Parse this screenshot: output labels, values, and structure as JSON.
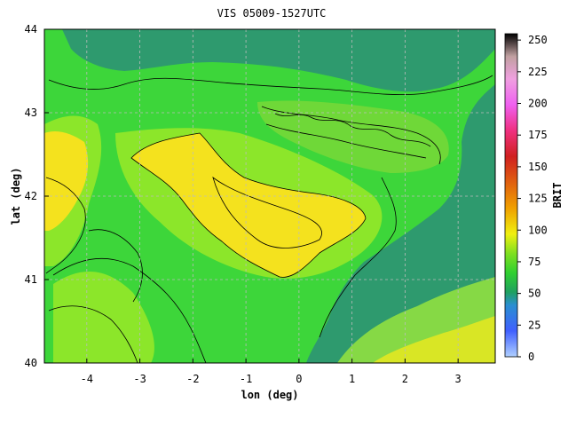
{
  "title": "VIS 05009-1527UTC",
  "colors": {
    "sea": "#2e9a6e",
    "land_low": "#3dd63a",
    "land_mid": "#8ce62a",
    "plateau": "#f4e21e",
    "grid": "#bcbcbc",
    "frame": "#000000"
  },
  "chart_data": {
    "type": "heatmap",
    "title": "VIS 05009-1527UTC",
    "xlabel": "lon (deg)",
    "ylabel": "lat (deg)",
    "xlim": [
      -4.8,
      3.7
    ],
    "ylim": [
      40,
      44
    ],
    "xticks": [
      "-4",
      "-3",
      "-2",
      "-1",
      "0",
      "1",
      "2",
      "3"
    ],
    "yticks": [
      "40",
      "41",
      "42",
      "43",
      "44"
    ],
    "colorbar": {
      "label": "BRIT",
      "range": [
        0,
        255
      ],
      "ticks": [
        "0",
        "25",
        "50",
        "75",
        "100",
        "125",
        "150",
        "175",
        "200",
        "225",
        "250"
      ]
    },
    "grid": true
  }
}
